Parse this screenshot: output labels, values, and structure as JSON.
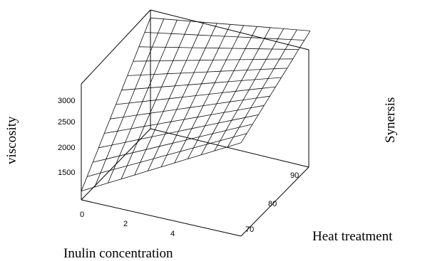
{
  "chart_data": {
    "type": "surface",
    "title": "",
    "axes": {
      "x": {
        "label": "Inulin concentration",
        "ticks": [
          "0",
          "2",
          "4"
        ],
        "range": [
          0,
          6
        ]
      },
      "y": {
        "label": "Heat treatment",
        "ticks": [
          "70",
          "80",
          "90"
        ],
        "range": [
          65,
          95
        ]
      },
      "z": {
        "label": "viscosity",
        "ticks": [
          "1500",
          "2000",
          "2500",
          "3000"
        ],
        "range": [
          1000,
          3400
        ]
      }
    },
    "extra_label": "Synersis",
    "surface": {
      "x_values": [
        0,
        0.5,
        1,
        1.5,
        2,
        2.5,
        3,
        3.5,
        4,
        4.5,
        5,
        5.5,
        6
      ],
      "y_values": [
        65,
        67.5,
        70,
        72.5,
        75,
        77.5,
        80,
        82.5,
        85,
        87.5,
        90,
        92.5,
        95
      ],
      "corners": {
        "x0_y65": 1150,
        "x0_y95": 2900,
        "x6_y65": 2600,
        "x6_y95": 3300
      }
    },
    "grid": false,
    "legend": "none"
  }
}
